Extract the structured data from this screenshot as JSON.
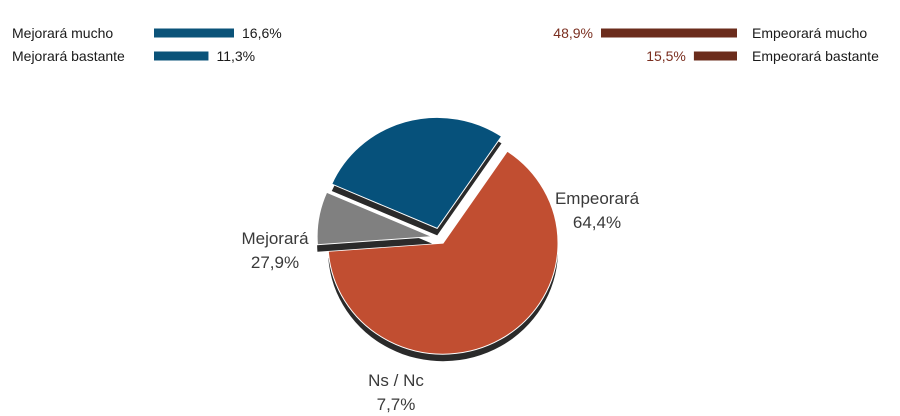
{
  "chart_data": [
    {
      "type": "bar",
      "orientation": "horizontal",
      "categories": [
        "Mejorará mucho",
        "Mejorará bastante"
      ],
      "values": [
        16.6,
        11.3
      ],
      "value_labels": [
        "16,6%",
        "11,3%"
      ],
      "color": "#0b5379"
    },
    {
      "type": "bar",
      "orientation": "horizontal",
      "categories": [
        "Empeorará mucho",
        "Empeorará bastante"
      ],
      "values": [
        48.9,
        15.5
      ],
      "value_labels": [
        "48,9%",
        "15,5%"
      ],
      "color": "#6b2c1c"
    },
    {
      "type": "pie",
      "exploded": true,
      "slices": [
        {
          "name": "Empeorará",
          "value": 64.4,
          "value_label": "64,4%",
          "color": "#c14e31"
        },
        {
          "name": "Ns / Nc",
          "value": 7.7,
          "value_label": "7,7%",
          "color": "#808080"
        },
        {
          "name": "Mejorará",
          "value": 27.9,
          "value_label": "27,9%",
          "color": "#06517b"
        }
      ]
    }
  ]
}
